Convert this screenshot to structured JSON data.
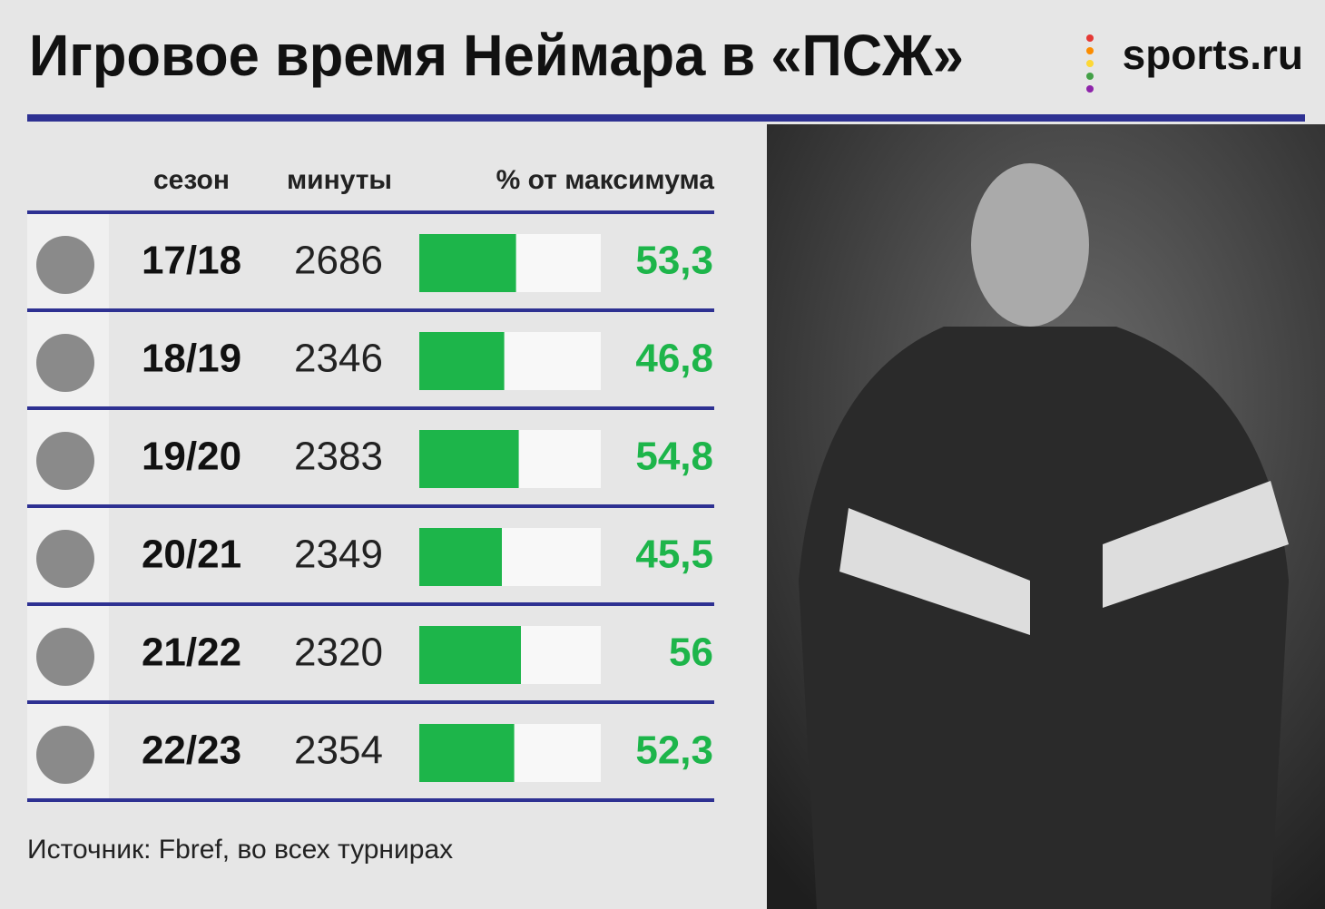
{
  "chart_data": {
    "type": "bar",
    "title": "Игровое время Неймара в «ПСЖ»",
    "logo": "sports.ru",
    "column_headers": [
      "сезон",
      "минуты",
      "% от максимума"
    ],
    "categories": [
      "17/18",
      "18/19",
      "19/20",
      "20/21",
      "21/22",
      "22/23"
    ],
    "minutes": [
      2686,
      2346,
      2383,
      2349,
      2320,
      2354
    ],
    "values": [
      53.3,
      46.8,
      54.8,
      45.5,
      56,
      52.3
    ],
    "value_labels": [
      "53,3",
      "46,8",
      "54,8",
      "45,5",
      "56",
      "52,3"
    ],
    "xlim": [
      0,
      100
    ],
    "color": "#1db54a",
    "source": "Источник: Fbref, во всех турнирах"
  }
}
